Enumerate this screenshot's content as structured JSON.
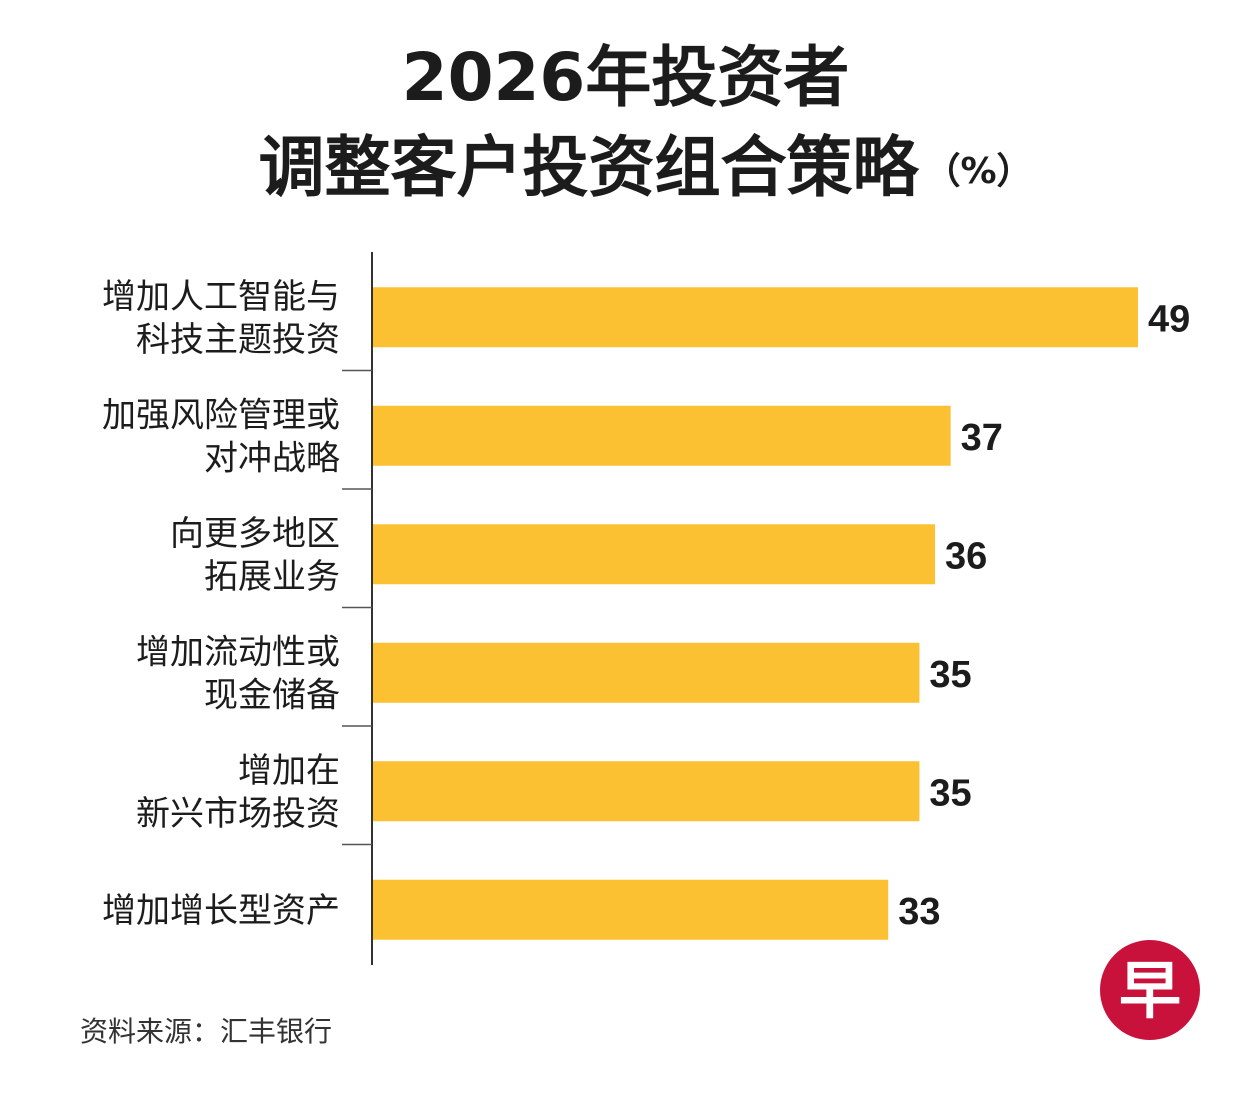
{
  "title": {
    "line1": "2026年投资者",
    "line2": "调整客户投资组合策略",
    "unit": "（%）"
  },
  "source": "资料来源：汇丰银行",
  "logo": {
    "glyph": "早",
    "color": "#c8123c"
  },
  "chart_data": {
    "type": "bar",
    "orientation": "horizontal",
    "categories": [
      [
        "增加人工智能与",
        "科技主题投资"
      ],
      [
        "加强风险管理或",
        "对冲战略"
      ],
      [
        "向更多地区",
        "拓展业务"
      ],
      [
        "增加流动性或",
        "现金储备"
      ],
      [
        "增加在",
        "新兴市场投资"
      ],
      [
        "增加增长型资产"
      ]
    ],
    "values": [
      49,
      37,
      36,
      35,
      35,
      33
    ],
    "bar_color": "#fcc133",
    "xlim": [
      0,
      49
    ],
    "grid": false
  }
}
